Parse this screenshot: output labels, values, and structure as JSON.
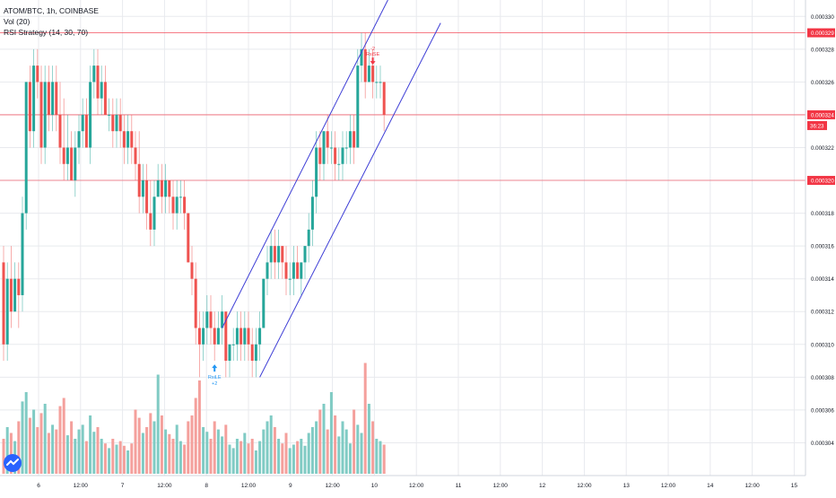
{
  "legend": {
    "symbol": "ATOM/BTC, 1h, COINBASE",
    "volume": "Vol (20)",
    "strategy": "RSI Strategy (14, 30, 70)"
  },
  "price_lines": {
    "upper_level": "0.000329",
    "last_price": "0.000324",
    "countdown": "36:23",
    "lower_level": "0.000320"
  },
  "signals": {
    "buy_label": "RsiLE",
    "buy_qty": "+2",
    "sell_label": "RsiSE",
    "sell_qty": "-2"
  },
  "colors": {
    "up": "#26a69a",
    "down": "#ef5350",
    "vol_up": "#80cbc4",
    "vol_down": "#f4a09c",
    "channel": "#3f3fd6",
    "price_line_red": "#f23645",
    "grid": "#e8eaee",
    "axis_text": "#131722",
    "buy_signal": "#2196f3"
  },
  "chart_data": {
    "type": "candlestick",
    "title": "ATOM/BTC, 1h, COINBASE",
    "ylim": [
      0.000302,
      0.000331
    ],
    "y_ticks": [
      "0.000304",
      "0.000306",
      "0.000308",
      "0.000310",
      "0.000312",
      "0.000314",
      "0.000316",
      "0.000318",
      "0.000320",
      "0.000322",
      "0.000324",
      "0.000326",
      "0.000328",
      "0.000330"
    ],
    "x_ticks": [
      "6",
      "12:00",
      "7",
      "12:00",
      "8",
      "12:00",
      "9",
      "12:00",
      "10",
      "12:00",
      "11",
      "12:00",
      "12",
      "12:00",
      "13",
      "12:00",
      "14",
      "12:00",
      "15"
    ],
    "hlines": [
      0.000329,
      0.000324,
      0.00032
    ],
    "last_price": 0.000324,
    "channel": {
      "upper": [
        {
          "bar": 58,
          "price": 0.000311
        },
        {
          "bar": 102,
          "price": 0.000331
        }
      ],
      "lower": [
        {
          "bar": 68,
          "price": 0.000308
        },
        {
          "bar": 116,
          "price": 0.0003296
        }
      ]
    },
    "signals": [
      {
        "type": "buy",
        "bar": 56,
        "price": 0.000309,
        "label": "RsiLE",
        "qty": "+2"
      },
      {
        "type": "sell",
        "bar": 98,
        "price": 0.000327,
        "label": "RsiSE",
        "qty": "-2"
      }
    ],
    "candles": [
      {
        "o": 0.000315,
        "h": 0.000316,
        "l": 0.000309,
        "c": 0.00031,
        "v": 0.3
      },
      {
        "o": 0.00031,
        "h": 0.000315,
        "l": 0.000309,
        "c": 0.000314,
        "v": 0.4
      },
      {
        "o": 0.000314,
        "h": 0.000316,
        "l": 0.000311,
        "c": 0.000312,
        "v": 0.35
      },
      {
        "o": 0.000312,
        "h": 0.000315,
        "l": 0.000312,
        "c": 0.000314,
        "v": 0.28
      },
      {
        "o": 0.000314,
        "h": 0.000315,
        "l": 0.000311,
        "c": 0.000313,
        "v": 0.45
      },
      {
        "o": 0.000313,
        "h": 0.000319,
        "l": 0.000312,
        "c": 0.000318,
        "v": 0.62
      },
      {
        "o": 0.000318,
        "h": 0.000326,
        "l": 0.000317,
        "c": 0.000326,
        "v": 0.7
      },
      {
        "o": 0.000326,
        "h": 0.000327,
        "l": 0.000322,
        "c": 0.000323,
        "v": 0.48
      },
      {
        "o": 0.000323,
        "h": 0.000328,
        "l": 0.000322,
        "c": 0.000327,
        "v": 0.55
      },
      {
        "o": 0.000327,
        "h": 0.000328,
        "l": 0.000325,
        "c": 0.000326,
        "v": 0.4
      },
      {
        "o": 0.000326,
        "h": 0.000327,
        "l": 0.000321,
        "c": 0.000322,
        "v": 0.52
      },
      {
        "o": 0.000322,
        "h": 0.000327,
        "l": 0.000321,
        "c": 0.000326,
        "v": 0.6
      },
      {
        "o": 0.000326,
        "h": 0.000327,
        "l": 0.000323,
        "c": 0.000324,
        "v": 0.35
      },
      {
        "o": 0.000324,
        "h": 0.000327,
        "l": 0.000323,
        "c": 0.000326,
        "v": 0.42
      },
      {
        "o": 0.000326,
        "h": 0.000327,
        "l": 0.000323,
        "c": 0.000324,
        "v": 0.38
      },
      {
        "o": 0.000324,
        "h": 0.000326,
        "l": 0.000321,
        "c": 0.000322,
        "v": 0.58
      },
      {
        "o": 0.000322,
        "h": 0.000325,
        "l": 0.00032,
        "c": 0.000321,
        "v": 0.65
      },
      {
        "o": 0.000321,
        "h": 0.000324,
        "l": 0.00032,
        "c": 0.000322,
        "v": 0.33
      },
      {
        "o": 0.000322,
        "h": 0.000323,
        "l": 0.00032,
        "c": 0.00032,
        "v": 0.45
      },
      {
        "o": 0.00032,
        "h": 0.000323,
        "l": 0.000319,
        "c": 0.000322,
        "v": 0.3
      },
      {
        "o": 0.000322,
        "h": 0.000324,
        "l": 0.000321,
        "c": 0.000323,
        "v": 0.38
      },
      {
        "o": 0.000323,
        "h": 0.000325,
        "l": 0.000322,
        "c": 0.000324,
        "v": 0.42
      },
      {
        "o": 0.000324,
        "h": 0.000325,
        "l": 0.000322,
        "c": 0.000322,
        "v": 0.28
      },
      {
        "o": 0.000322,
        "h": 0.000327,
        "l": 0.000321,
        "c": 0.000326,
        "v": 0.5
      },
      {
        "o": 0.000326,
        "h": 0.000328,
        "l": 0.000325,
        "c": 0.000327,
        "v": 0.36
      },
      {
        "o": 0.000327,
        "h": 0.000328,
        "l": 0.000324,
        "c": 0.000325,
        "v": 0.4
      },
      {
        "o": 0.000325,
        "h": 0.000327,
        "l": 0.000324,
        "c": 0.000326,
        "v": 0.3
      },
      {
        "o": 0.000326,
        "h": 0.000327,
        "l": 0.000324,
        "c": 0.000324,
        "v": 0.26
      },
      {
        "o": 0.000324,
        "h": 0.000325,
        "l": 0.000323,
        "c": 0.000324,
        "v": 0.22
      },
      {
        "o": 0.000324,
        "h": 0.000325,
        "l": 0.000322,
        "c": 0.000323,
        "v": 0.3
      },
      {
        "o": 0.000323,
        "h": 0.000325,
        "l": 0.000322,
        "c": 0.000324,
        "v": 0.25
      },
      {
        "o": 0.000324,
        "h": 0.000325,
        "l": 0.000322,
        "c": 0.000323,
        "v": 0.28
      },
      {
        "o": 0.000323,
        "h": 0.000324,
        "l": 0.000321,
        "c": 0.000322,
        "v": 0.24
      },
      {
        "o": 0.000322,
        "h": 0.000324,
        "l": 0.000321,
        "c": 0.000323,
        "v": 0.2
      },
      {
        "o": 0.000323,
        "h": 0.000324,
        "l": 0.000321,
        "c": 0.000322,
        "v": 0.26
      },
      {
        "o": 0.000322,
        "h": 0.000323,
        "l": 0.00032,
        "c": 0.000321,
        "v": 0.55
      },
      {
        "o": 0.000321,
        "h": 0.000323,
        "l": 0.000318,
        "c": 0.000319,
        "v": 0.48
      },
      {
        "o": 0.000319,
        "h": 0.000321,
        "l": 0.000318,
        "c": 0.00032,
        "v": 0.35
      },
      {
        "o": 0.00032,
        "h": 0.000321,
        "l": 0.000317,
        "c": 0.000318,
        "v": 0.4
      },
      {
        "o": 0.000318,
        "h": 0.00032,
        "l": 0.000316,
        "c": 0.000317,
        "v": 0.52
      },
      {
        "o": 0.000317,
        "h": 0.00032,
        "l": 0.000316,
        "c": 0.000319,
        "v": 0.45
      },
      {
        "o": 0.000319,
        "h": 0.000321,
        "l": 0.000319,
        "c": 0.00032,
        "v": 0.85
      },
      {
        "o": 0.00032,
        "h": 0.000321,
        "l": 0.000318,
        "c": 0.000319,
        "v": 0.5
      },
      {
        "o": 0.000319,
        "h": 0.000321,
        "l": 0.000318,
        "c": 0.00032,
        "v": 0.38
      },
      {
        "o": 0.00032,
        "h": 0.00032,
        "l": 0.000318,
        "c": 0.000319,
        "v": 0.34
      },
      {
        "o": 0.000319,
        "h": 0.00032,
        "l": 0.000317,
        "c": 0.000318,
        "v": 0.3
      },
      {
        "o": 0.000318,
        "h": 0.00032,
        "l": 0.000317,
        "c": 0.000319,
        "v": 0.42
      },
      {
        "o": 0.000319,
        "h": 0.00032,
        "l": 0.000318,
        "c": 0.000319,
        "v": 0.28
      },
      {
        "o": 0.000319,
        "h": 0.00032,
        "l": 0.000317,
        "c": 0.000318,
        "v": 0.25
      },
      {
        "o": 0.000318,
        "h": 0.000318,
        "l": 0.000315,
        "c": 0.000315,
        "v": 0.45
      },
      {
        "o": 0.000315,
        "h": 0.000316,
        "l": 0.000313,
        "c": 0.000314,
        "v": 0.5
      },
      {
        "o": 0.000314,
        "h": 0.000315,
        "l": 0.00031,
        "c": 0.000311,
        "v": 0.65
      },
      {
        "o": 0.000311,
        "h": 0.000312,
        "l": 0.000308,
        "c": 0.00031,
        "v": 0.8
      },
      {
        "o": 0.00031,
        "h": 0.000312,
        "l": 0.000309,
        "c": 0.000311,
        "v": 0.4
      },
      {
        "o": 0.000311,
        "h": 0.000313,
        "l": 0.00031,
        "c": 0.000312,
        "v": 0.36
      },
      {
        "o": 0.000312,
        "h": 0.000313,
        "l": 0.00031,
        "c": 0.000311,
        "v": 0.3
      },
      {
        "o": 0.000311,
        "h": 0.000312,
        "l": 0.000309,
        "c": 0.00031,
        "v": 0.45
      },
      {
        "o": 0.00031,
        "h": 0.000312,
        "l": 0.00031,
        "c": 0.000311,
        "v": 0.38
      },
      {
        "o": 0.000311,
        "h": 0.000313,
        "l": 0.00031,
        "c": 0.000312,
        "v": 0.32
      },
      {
        "o": 0.000312,
        "h": 0.000312,
        "l": 0.000308,
        "c": 0.000309,
        "v": 0.42
      },
      {
        "o": 0.000309,
        "h": 0.00031,
        "l": 0.000308,
        "c": 0.00031,
        "v": 0.25
      },
      {
        "o": 0.00031,
        "h": 0.000311,
        "l": 0.000309,
        "c": 0.00031,
        "v": 0.22
      },
      {
        "o": 0.00031,
        "h": 0.000312,
        "l": 0.000309,
        "c": 0.000311,
        "v": 0.3
      },
      {
        "o": 0.000311,
        "h": 0.000312,
        "l": 0.000309,
        "c": 0.00031,
        "v": 0.28
      },
      {
        "o": 0.00031,
        "h": 0.000312,
        "l": 0.000309,
        "c": 0.000311,
        "v": 0.35
      },
      {
        "o": 0.000311,
        "h": 0.000312,
        "l": 0.000309,
        "c": 0.00031,
        "v": 0.26
      },
      {
        "o": 0.00031,
        "h": 0.000311,
        "l": 0.000308,
        "c": 0.000309,
        "v": 0.3
      },
      {
        "o": 0.000309,
        "h": 0.000311,
        "l": 0.000308,
        "c": 0.00031,
        "v": 0.2
      },
      {
        "o": 0.00031,
        "h": 0.000312,
        "l": 0.000309,
        "c": 0.000311,
        "v": 0.28
      },
      {
        "o": 0.000311,
        "h": 0.000314,
        "l": 0.000311,
        "c": 0.000314,
        "v": 0.38
      },
      {
        "o": 0.000314,
        "h": 0.000316,
        "l": 0.000313,
        "c": 0.000315,
        "v": 0.45
      },
      {
        "o": 0.000315,
        "h": 0.000317,
        "l": 0.000314,
        "c": 0.000316,
        "v": 0.5
      },
      {
        "o": 0.000316,
        "h": 0.000317,
        "l": 0.000314,
        "c": 0.000315,
        "v": 0.4
      },
      {
        "o": 0.000315,
        "h": 0.000317,
        "l": 0.000314,
        "c": 0.000316,
        "v": 0.3
      },
      {
        "o": 0.000316,
        "h": 0.000316,
        "l": 0.000314,
        "c": 0.000315,
        "v": 0.26
      },
      {
        "o": 0.000315,
        "h": 0.000316,
        "l": 0.000313,
        "c": 0.000314,
        "v": 0.35
      },
      {
        "o": 0.000314,
        "h": 0.000315,
        "l": 0.000313,
        "c": 0.000314,
        "v": 0.22
      },
      {
        "o": 0.000314,
        "h": 0.000316,
        "l": 0.000313,
        "c": 0.000315,
        "v": 0.25
      },
      {
        "o": 0.000315,
        "h": 0.000316,
        "l": 0.000314,
        "c": 0.000314,
        "v": 0.28
      },
      {
        "o": 0.000314,
        "h": 0.000315,
        "l": 0.000313,
        "c": 0.000315,
        "v": 0.3
      },
      {
        "o": 0.000315,
        "h": 0.000316,
        "l": 0.000314,
        "c": 0.000316,
        "v": 0.24
      },
      {
        "o": 0.000316,
        "h": 0.000318,
        "l": 0.000315,
        "c": 0.000317,
        "v": 0.35
      },
      {
        "o": 0.000317,
        "h": 0.00032,
        "l": 0.000316,
        "c": 0.000319,
        "v": 0.4
      },
      {
        "o": 0.000319,
        "h": 0.000323,
        "l": 0.000318,
        "c": 0.000322,
        "v": 0.45
      },
      {
        "o": 0.000322,
        "h": 0.000323,
        "l": 0.00032,
        "c": 0.000321,
        "v": 0.55
      },
      {
        "o": 0.000321,
        "h": 0.000323,
        "l": 0.00032,
        "c": 0.000323,
        "v": 0.6
      },
      {
        "o": 0.000323,
        "h": 0.000324,
        "l": 0.000321,
        "c": 0.000322,
        "v": 0.38
      },
      {
        "o": 0.000322,
        "h": 0.000323,
        "l": 0.000321,
        "c": 0.000322,
        "v": 0.7
      },
      {
        "o": 0.000322,
        "h": 0.000323,
        "l": 0.00032,
        "c": 0.000321,
        "v": 0.5
      },
      {
        "o": 0.000321,
        "h": 0.000322,
        "l": 0.00032,
        "c": 0.000321,
        "v": 0.32
      },
      {
        "o": 0.000321,
        "h": 0.000323,
        "l": 0.00032,
        "c": 0.000322,
        "v": 0.45
      },
      {
        "o": 0.000322,
        "h": 0.000323,
        "l": 0.000321,
        "c": 0.000322,
        "v": 0.38
      },
      {
        "o": 0.000322,
        "h": 0.000324,
        "l": 0.000321,
        "c": 0.000323,
        "v": 0.26
      },
      {
        "o": 0.000323,
        "h": 0.000324,
        "l": 0.000321,
        "c": 0.000322,
        "v": 0.55
      },
      {
        "o": 0.000322,
        "h": 0.000328,
        "l": 0.000322,
        "c": 0.000327,
        "v": 0.42
      },
      {
        "o": 0.000327,
        "h": 0.000329,
        "l": 0.000326,
        "c": 0.000328,
        "v": 0.35
      },
      {
        "o": 0.000328,
        "h": 0.000329,
        "l": 0.000325,
        "c": 0.000326,
        "v": 0.95
      },
      {
        "o": 0.000326,
        "h": 0.000328,
        "l": 0.000326,
        "c": 0.000327,
        "v": 0.6
      },
      {
        "o": 0.000327,
        "h": 0.000328,
        "l": 0.000325,
        "c": 0.000326,
        "v": 0.45
      },
      {
        "o": 0.000326,
        "h": 0.000327,
        "l": 0.000325,
        "c": 0.000326,
        "v": 0.3
      },
      {
        "o": 0.000326,
        "h": 0.000327,
        "l": 0.000325,
        "c": 0.000326,
        "v": 0.28
      },
      {
        "o": 0.000326,
        "h": 0.000326,
        "l": 0.000323,
        "c": 0.000324,
        "v": 0.25
      }
    ]
  }
}
